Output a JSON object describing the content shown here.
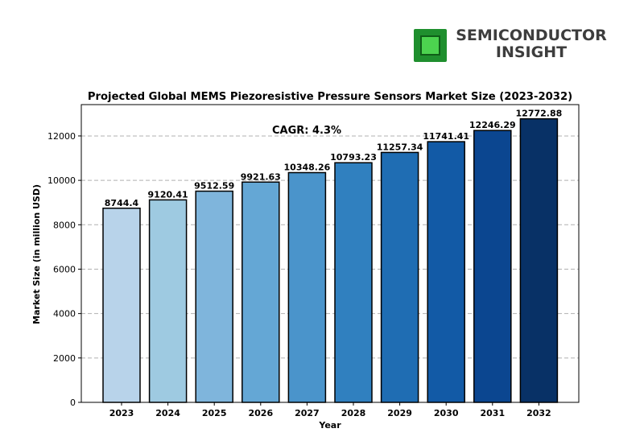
{
  "logo": {
    "line1": "SEMICONDUCTOR",
    "line2": "INSIGHT"
  },
  "chart_data": {
    "type": "bar",
    "title": "Projected Global MEMS Piezoresistive Pressure Sensors Market Size (2023-2032)",
    "annotation": "CAGR: 4.3%",
    "xlabel": "Year",
    "ylabel": "Market Size (in million USD)",
    "categories": [
      "2023",
      "2024",
      "2025",
      "2026",
      "2027",
      "2028",
      "2029",
      "2030",
      "2031",
      "2032"
    ],
    "values": [
      8744.4,
      9120.41,
      9512.59,
      9921.63,
      10348.26,
      10793.23,
      11257.34,
      11741.41,
      12246.29,
      12772.88
    ],
    "value_labels": [
      "8744.4",
      "9120.41",
      "9512.59",
      "9921.63",
      "10348.26",
      "10793.23",
      "11257.34",
      "11741.41",
      "12246.29",
      "12772.88"
    ],
    "yticks": [
      0,
      2000,
      4000,
      6000,
      8000,
      10000,
      12000
    ],
    "ylim": [
      0,
      13411.52
    ],
    "grid": "horizontal dashed",
    "colors": [
      "#b8d3ea",
      "#9ecae1",
      "#7fb5dc",
      "#64a7d5",
      "#4a94cb",
      "#3080bf",
      "#1f6db3",
      "#125aa6",
      "#0b4690",
      "#083166"
    ]
  }
}
